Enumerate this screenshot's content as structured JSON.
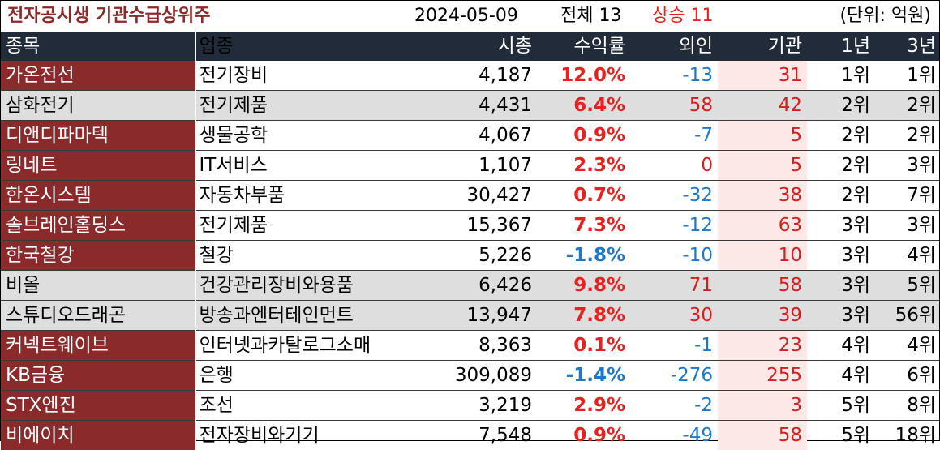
{
  "header": {
    "title": "전자공시생 기관수급상위주",
    "date": "2024-05-09",
    "total": "전체 13",
    "up": "상승 11",
    "unit": "(단위: 억원)"
  },
  "columns": [
    "종목",
    "업종",
    "시총",
    "수익률",
    "외인",
    "기관",
    "1년",
    "3년"
  ],
  "rows": [
    {
      "name": "가온전선",
      "sector": "전기장비",
      "cap": "4,187",
      "ret": "12.0%",
      "foreign": "-13",
      "inst": "31",
      "y1": "1위",
      "y3": "1위",
      "highlight": false
    },
    {
      "name": "삼화전기",
      "sector": "전기제품",
      "cap": "4,431",
      "ret": "6.4%",
      "foreign": "58",
      "inst": "42",
      "y1": "2위",
      "y3": "2위",
      "highlight": true
    },
    {
      "name": "디앤디파마텍",
      "sector": "생물공학",
      "cap": "4,067",
      "ret": "0.9%",
      "foreign": "-7",
      "inst": "5",
      "y1": "2위",
      "y3": "2위",
      "highlight": false
    },
    {
      "name": "링네트",
      "sector": "IT서비스",
      "cap": "1,107",
      "ret": "2.3%",
      "foreign": "0",
      "inst": "5",
      "y1": "2위",
      "y3": "3위",
      "highlight": false
    },
    {
      "name": "한온시스템",
      "sector": "자동차부품",
      "cap": "30,427",
      "ret": "0.7%",
      "foreign": "-32",
      "inst": "38",
      "y1": "2위",
      "y3": "7위",
      "highlight": false
    },
    {
      "name": "솔브레인홀딩스",
      "sector": "전기제품",
      "cap": "15,367",
      "ret": "7.3%",
      "foreign": "-12",
      "inst": "63",
      "y1": "3위",
      "y3": "3위",
      "highlight": false
    },
    {
      "name": "한국철강",
      "sector": "철강",
      "cap": "5,226",
      "ret": "-1.8%",
      "foreign": "-10",
      "inst": "10",
      "y1": "3위",
      "y3": "4위",
      "highlight": false
    },
    {
      "name": "비올",
      "sector": "건강관리장비와용품",
      "cap": "6,426",
      "ret": "9.8%",
      "foreign": "71",
      "inst": "58",
      "y1": "3위",
      "y3": "5위",
      "highlight": true
    },
    {
      "name": "스튜디오드래곤",
      "sector": "방송과엔터테인먼트",
      "cap": "13,947",
      "ret": "7.8%",
      "foreign": "30",
      "inst": "39",
      "y1": "3위",
      "y3": "56위",
      "highlight": true
    },
    {
      "name": "커넥트웨이브",
      "sector": "인터넷과카탈로그소매",
      "cap": "8,363",
      "ret": "0.1%",
      "foreign": "-1",
      "inst": "23",
      "y1": "4위",
      "y3": "4위",
      "highlight": false
    },
    {
      "name": "KB금융",
      "sector": "은행",
      "cap": "309,089",
      "ret": "-1.4%",
      "foreign": "-276",
      "inst": "255",
      "y1": "4위",
      "y3": "6위",
      "highlight": false
    },
    {
      "name": "STX엔진",
      "sector": "조선",
      "cap": "3,219",
      "ret": "2.9%",
      "foreign": "-2",
      "inst": "3",
      "y1": "5위",
      "y3": "8위",
      "highlight": false
    },
    {
      "name": "비에이치",
      "sector": "전자장비와기기",
      "cap": "7,548",
      "ret": "0.9%",
      "foreign": "-49",
      "inst": "58",
      "y1": "5위",
      "y3": "18위",
      "highlight": false
    }
  ],
  "colors": {
    "name_bg": "#8b2a2a",
    "header_bg": "#212b39",
    "highlight_bg": "#dedede",
    "inst_bg": "#fde8e8",
    "positive": "#e8201f",
    "negative": "#1f77c8"
  }
}
